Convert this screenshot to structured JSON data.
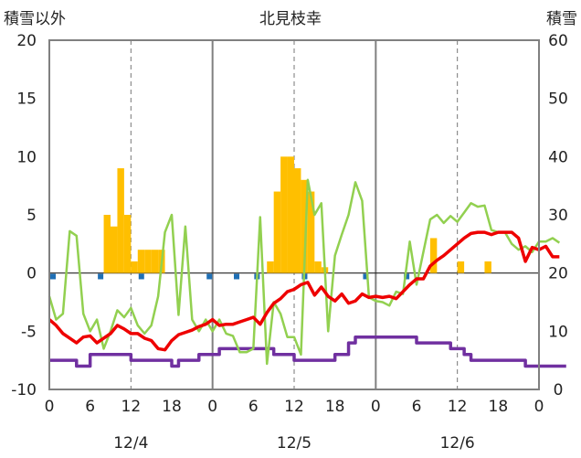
{
  "chart_data": {
    "type": "bar",
    "title": "北見枝幸",
    "ylabel_left": "積雪以外",
    "ylabel_right": "積雪",
    "ylim_left": [
      -10,
      20
    ],
    "ylim_right": [
      0,
      60
    ],
    "yticks_left": [
      "20",
      "15",
      "10",
      "5",
      "0",
      "-5",
      "-10"
    ],
    "yticks_right": [
      "60",
      "50",
      "40",
      "30",
      "20",
      "10",
      "0"
    ],
    "hour_ticks": [
      "0",
      "6",
      "12",
      "18",
      "0",
      "6",
      "12",
      "18",
      "0",
      "6",
      "12",
      "18",
      "0"
    ],
    "day_labels": [
      "12/4",
      "12/5",
      "12/6"
    ],
    "grid": true,
    "colors": {
      "precip_bar": "#FFBF00",
      "temperature": "#EE0000",
      "wind": "#92D050",
      "snow_depth": "#7030A0",
      "sunshine_marker": "#1F6FB5",
      "axis": "#808080"
    },
    "series": [
      {
        "key": "precip",
        "kind": "bar",
        "axis": "left",
        "hours": [
          8,
          9,
          10,
          11,
          12,
          13,
          14,
          15,
          16,
          32,
          33,
          34,
          35,
          36,
          37,
          38,
          39,
          40,
          56,
          60,
          64
        ],
        "values": [
          5.0,
          4.0,
          9.0,
          5.0,
          1.0,
          2.0,
          2.0,
          2.0,
          2.0,
          1.0,
          7.0,
          10.0,
          10.0,
          9.0,
          8.0,
          7.0,
          1.0,
          0.5,
          3.0,
          1.0,
          1.0
        ]
      },
      {
        "key": "temperature",
        "kind": "line",
        "axis": "left",
        "values": [
          -4.0,
          -4.5,
          -5.2,
          -5.6,
          -6.0,
          -5.5,
          -5.4,
          -6.0,
          -5.6,
          -5.2,
          -4.5,
          -4.8,
          -5.2,
          -5.2,
          -5.6,
          -5.8,
          -6.5,
          -6.6,
          -5.8,
          -5.3,
          -5.1,
          -4.9,
          -4.6,
          -4.4,
          -4.0,
          -4.5,
          -4.4,
          -4.4,
          -4.2,
          -4.0,
          -3.8,
          -4.4,
          -3.4,
          -2.6,
          -2.2,
          -1.6,
          -1.4,
          -1.0,
          -0.8,
          -1.9,
          -1.2,
          -2.0,
          -2.4,
          -1.8,
          -2.6,
          -2.4,
          -1.8,
          -2.1,
          -2.0,
          -2.1,
          -2.0,
          -2.2,
          -1.6,
          -1.0,
          -0.5,
          -0.5,
          0.6,
          1.1,
          1.5,
          2.0,
          2.5,
          3.0,
          3.4,
          3.5,
          3.5,
          3.3,
          3.5,
          3.5,
          3.5,
          3.0,
          1.0,
          2.2,
          2.0,
          2.3,
          1.4,
          1.4
        ],
        "hours_start": 0
      },
      {
        "key": "wind",
        "kind": "line",
        "axis": "left",
        "values": [
          -2.0,
          -4.0,
          -3.5,
          3.6,
          3.2,
          -3.5,
          -5.0,
          -4.0,
          -6.5,
          -5.0,
          -3.2,
          -3.8,
          -3.0,
          -4.5,
          -5.2,
          -4.5,
          -2.0,
          3.5,
          5.0,
          -3.6,
          4.0,
          -4.0,
          -5.0,
          -4.0,
          -5.0,
          -4.0,
          -5.2,
          -5.4,
          -6.8,
          -6.8,
          -6.5,
          4.8,
          -7.8,
          -2.5,
          -3.5,
          -5.5,
          -5.5,
          -7.0,
          8.0,
          5.0,
          6.0,
          -5.0,
          1.5,
          3.3,
          5.0,
          7.8,
          6.2,
          -2.1,
          -2.4,
          -2.5,
          -2.8,
          -1.6,
          -1.8,
          2.7,
          -1.0,
          1.8,
          4.6,
          5.0,
          4.3,
          4.9,
          4.4,
          5.2,
          6.0,
          5.7,
          5.8,
          3.7,
          3.5,
          3.5,
          2.5,
          2.0,
          2.3,
          1.8,
          2.7,
          2.7,
          3.0,
          2.6
        ],
        "hours_start": 0
      },
      {
        "key": "snow_depth",
        "kind": "step",
        "axis": "right",
        "values": [
          5,
          5,
          5,
          5,
          4,
          4,
          6,
          6,
          6,
          6,
          6,
          6,
          5,
          5,
          5,
          5,
          5,
          5,
          4,
          5,
          5,
          5,
          6,
          6,
          6,
          7,
          7,
          7,
          7,
          7,
          7,
          7,
          7,
          6,
          6,
          6,
          5,
          5,
          5,
          5,
          5,
          5,
          6,
          6,
          8,
          9,
          9,
          9,
          9,
          9,
          9,
          9,
          9,
          9,
          8,
          8,
          8,
          8,
          8,
          7,
          7,
          6,
          5,
          5,
          5,
          5,
          5,
          5,
          5,
          5,
          4,
          4,
          4,
          4,
          4,
          4
        ],
        "hours_start": 0
      },
      {
        "key": "sunshine",
        "kind": "marker",
        "axis": "left",
        "hours": [
          0,
          7,
          13,
          23,
          27,
          30,
          37,
          46,
          52
        ],
        "value": -0.3
      }
    ]
  }
}
